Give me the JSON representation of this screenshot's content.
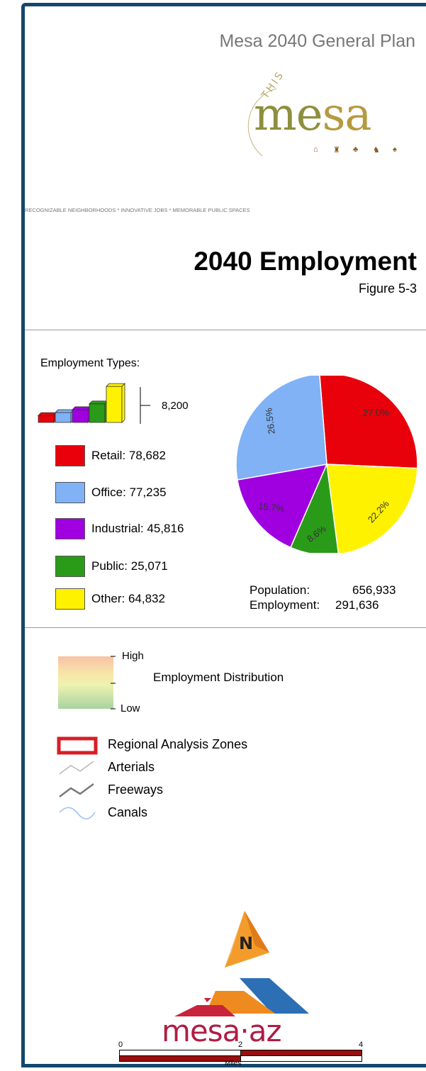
{
  "header": {
    "plan_title": "Mesa 2040 General Plan",
    "brand": {
      "arc_text": "THIS IS MY",
      "word": "mesa",
      "word_colors": [
        "#8d8f3c",
        "#8d8f3c",
        "#b59a3f",
        "#b59a3f"
      ]
    },
    "tagline": "RECOGNIZABLE NEIGHBORHOODS * INNOVATIVE JOBS * MEMORABLE PUBLIC SPACES",
    "map_title": "2040 Employment",
    "figure_label": "Figure 5-3"
  },
  "employment_panel": {
    "heading": "Employment Types:",
    "size_legend_value": "8,200",
    "types": [
      {
        "label": "Retail: 78,682",
        "color": "#e8000b"
      },
      {
        "label": "Office: 77,235",
        "color": "#80b2f5"
      },
      {
        "label": "Industrial: 45,816",
        "color": "#a000e0"
      },
      {
        "label": "Public: 25,071",
        "color": "#2a9b19"
      },
      {
        "label": "Other: 64,832",
        "color": "#fff200"
      }
    ],
    "stats": {
      "population_label": "Population:",
      "population_value": "656,933",
      "employment_label": "Employment:",
      "employment_value": "291,636"
    }
  },
  "chart_data": {
    "type": "pie",
    "title": "",
    "slices": [
      {
        "name": "Retail",
        "value": 78682,
        "percent": 27.0,
        "label": "27.0%",
        "color": "#e8000b"
      },
      {
        "name": "Other",
        "value": 64832,
        "percent": 22.2,
        "label": "22.2%",
        "color": "#fff200"
      },
      {
        "name": "Public",
        "value": 25071,
        "percent": 8.6,
        "label": "8.6%",
        "color": "#2a9b19"
      },
      {
        "name": "Industrial",
        "value": 45816,
        "percent": 15.7,
        "label": "15.7%",
        "color": "#a000e0"
      },
      {
        "name": "Office",
        "value": 77235,
        "percent": 26.5,
        "label": "26.5%",
        "color": "#80b2f5"
      }
    ],
    "size_bars": [
      {
        "color": "#e8000b",
        "level": 0.12
      },
      {
        "color": "#80b2f5",
        "level": 0.17
      },
      {
        "color": "#a000e0",
        "level": 0.22
      },
      {
        "color": "#2a9b19",
        "level": 0.32
      },
      {
        "color": "#fff200",
        "level": 0.62
      }
    ]
  },
  "map_legend": {
    "distribution_title": "Employment Distribution",
    "high_label": "High",
    "low_label": "Low",
    "symbols": [
      {
        "label": "Regional Analysis Zones",
        "icon": "rectangle-outline-icon",
        "color": "#d81e25"
      },
      {
        "label": "Arterials",
        "icon": "arterial-line-icon",
        "color": "#b7b7b7"
      },
      {
        "label": "Freeways",
        "icon": "freeway-line-icon",
        "color": "#7a7a7a"
      },
      {
        "label": "Canals",
        "icon": "canal-line-icon",
        "color": "#98c0f2"
      }
    ]
  },
  "footer": {
    "north_letter": "N",
    "logo_text": "mesa·az",
    "logo_color": "#b01d44",
    "scale": {
      "ticks": [
        "0",
        "2",
        "4"
      ],
      "units": "Miles"
    }
  }
}
